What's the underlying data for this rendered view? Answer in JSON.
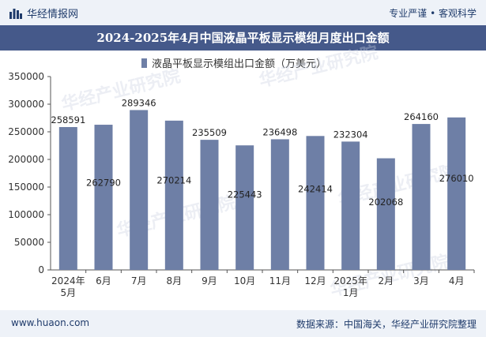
{
  "header": {
    "brand": "华经情报网",
    "tagline": "专业严谨 • 客观科学",
    "title": "2024-2025年4月中国液晶平板显示模组月度出口金额"
  },
  "footer": {
    "website": "www.huaon.com",
    "source": "数据来源：中国海关，华经产业研究院整理"
  },
  "colors": {
    "bar": "#6e7fa6",
    "title_bg": "#45598a",
    "bar_bg": "#eef2f8"
  },
  "chart_data": {
    "type": "bar",
    "title": "2024-2025年4月中国液晶平板显示模组月度出口金额",
    "xlabel": "",
    "ylabel": "",
    "categories": [
      "2024年5月",
      "6月",
      "7月",
      "8月",
      "9月",
      "10月",
      "11月",
      "12月",
      "2025年1月",
      "2月",
      "3月",
      "4月"
    ],
    "series": [
      {
        "name": "液晶平板显示模组出口金额（万美元）",
        "values": [
          258591,
          262790,
          289346,
          270214,
          235509,
          225443,
          236498,
          242414,
          232304,
          202068,
          264160,
          276010
        ],
        "label_position": [
          "top",
          "inside",
          "top",
          "inside",
          "top",
          "inside",
          "top",
          "inside",
          "top",
          "inside",
          "top",
          "inside"
        ]
      }
    ],
    "ylim": [
      0,
      350000
    ],
    "yticks": [
      "0",
      "50000",
      "100000",
      "150000",
      "200000",
      "250000",
      "300000",
      "350000"
    ],
    "grid": false,
    "legend": "top-center"
  },
  "watermarks": [
    "华经产业研究院",
    "www.huaon.com"
  ]
}
